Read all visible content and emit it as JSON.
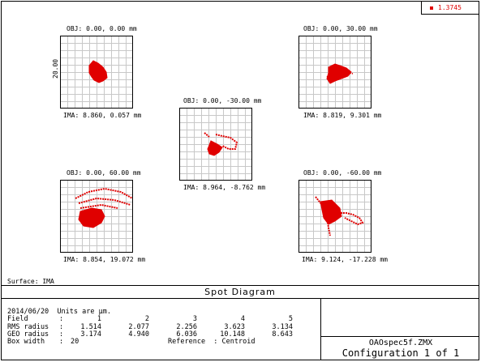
{
  "legend": {
    "label": "1.3745",
    "color": "#e00000"
  },
  "spots": [
    {
      "obj": "OBJ: 0.00, 0.00 mm",
      "ima": "IMA: 8.860, 0.057 mm",
      "scale_label": "20.00"
    },
    {
      "obj": "OBJ: 0.00, 30.00 mm",
      "ima": "IMA: 8.819, 9.301 mm"
    },
    {
      "obj": "OBJ: 0.00, -30.00 mm",
      "ima": "IMA: 8.964, -8.762 mm"
    },
    {
      "obj": "OBJ: 0.00, 60.00 mm",
      "ima": "IMA: 8.854, 19.072 mm"
    },
    {
      "obj": "OBJ: 0.00, -60.00 mm",
      "ima": "IMA: 9.124, -17.228 mm"
    }
  ],
  "surface": "Surface: IMA",
  "title": "Spot Diagram",
  "info": {
    "date": "2014/06/20",
    "units": "Units are µm.",
    "field_label": "Field",
    "fields": [
      "1",
      "2",
      "3",
      "4",
      "5"
    ],
    "rms_label": "RMS radius",
    "rms": [
      "1.514",
      "2.077",
      "2.256",
      "3.623",
      "3.134"
    ],
    "geo_label": "GEO radius",
    "geo": [
      "3.174",
      "4.940",
      "6.036",
      "10.148",
      "8.643"
    ],
    "box_label": "Box width",
    "box": "20",
    "reference": "Reference  : Centroid"
  },
  "file": "OAOspec5f.ZMX",
  "configuration": "Configuration 1 of 1"
}
